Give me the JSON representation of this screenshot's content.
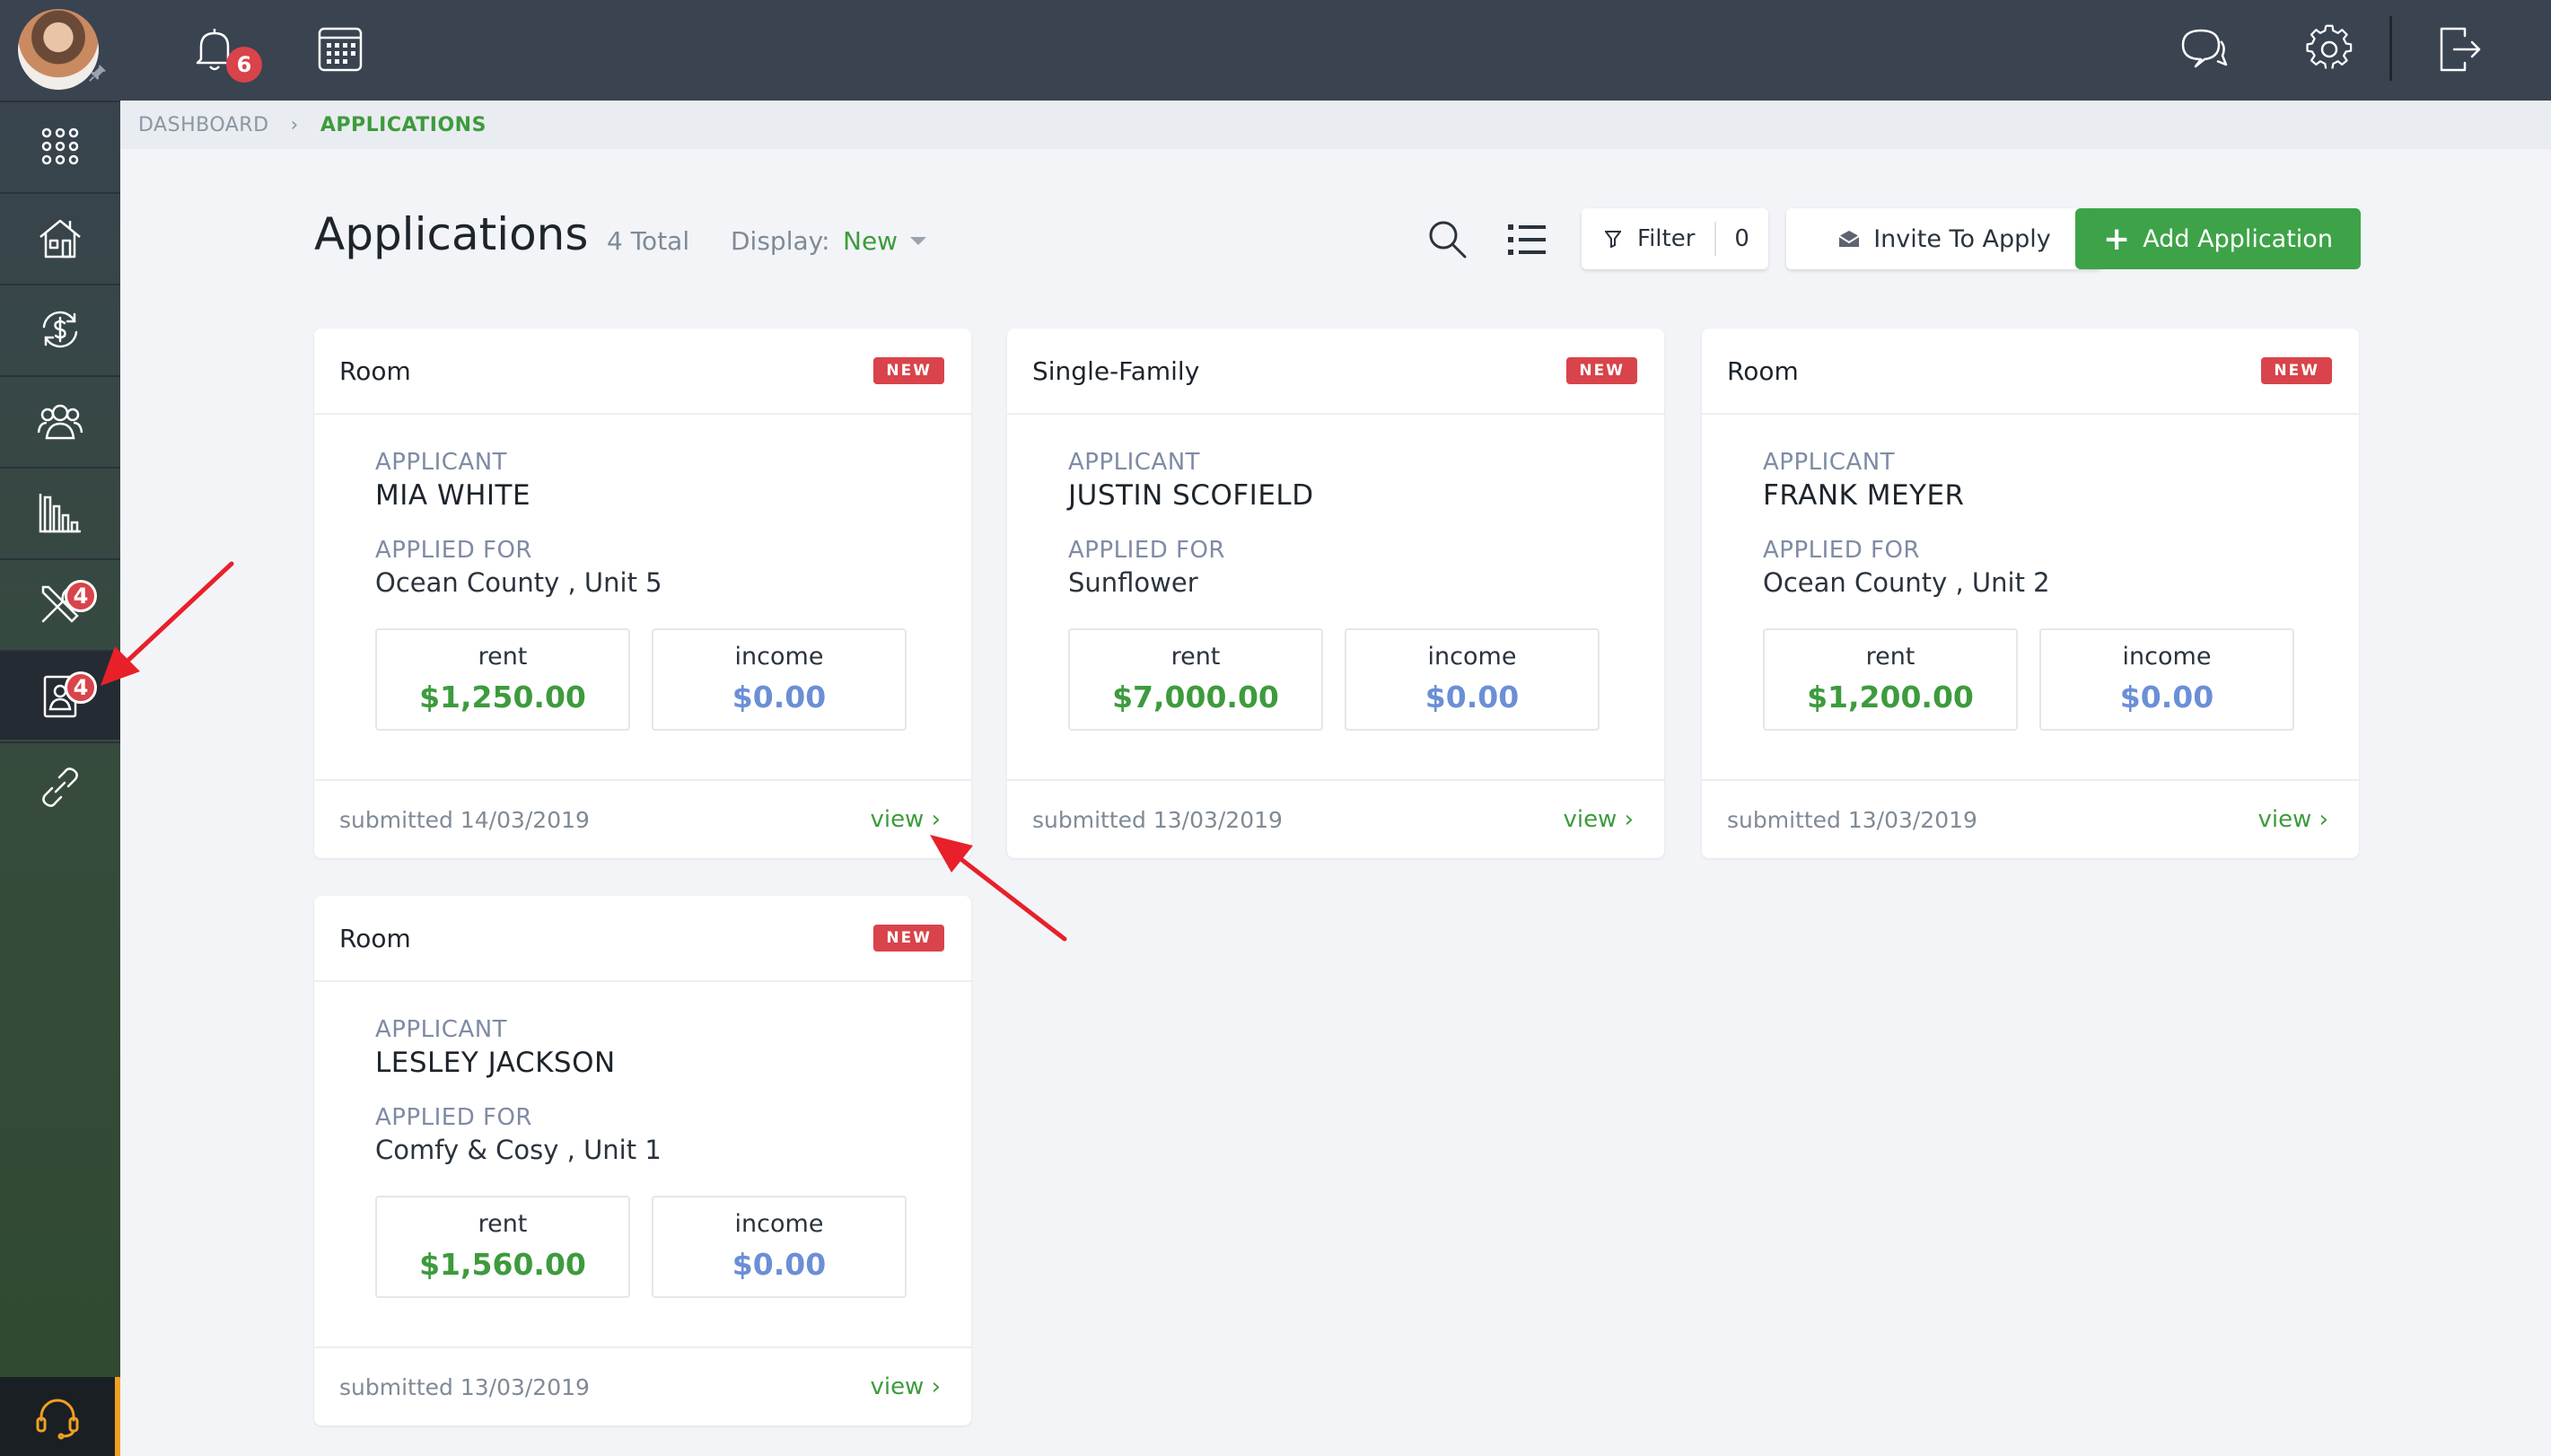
{
  "topbar": {
    "notification_count": "6"
  },
  "sidebar": {
    "items": [
      {
        "name": "apps",
        "icon": "grid-icon"
      },
      {
        "name": "properties",
        "icon": "house-icon"
      },
      {
        "name": "accounting",
        "icon": "dollar-cycle-icon"
      },
      {
        "name": "people",
        "icon": "users-icon"
      },
      {
        "name": "reports",
        "icon": "bar-chart-icon"
      },
      {
        "name": "maintenance",
        "icon": "tools-icon",
        "badge": "4"
      },
      {
        "name": "applications",
        "icon": "applicant-icon",
        "badge": "4",
        "active": true
      },
      {
        "name": "links",
        "icon": "link-icon"
      }
    ]
  },
  "breadcrumb": {
    "root": "DASHBOARD",
    "current": "APPLICATIONS"
  },
  "header": {
    "title": "Applications",
    "total": "4 Total",
    "display_label": "Display:",
    "display_value": "New",
    "filter_label": "Filter",
    "filter_count": "0",
    "invite_label": "Invite To Apply",
    "add_label": "Add Application"
  },
  "cards": [
    {
      "type": "Room",
      "badge": "NEW",
      "applicant_label": "APPLICANT",
      "applicant": "MIA WHITE",
      "applied_label": "APPLIED FOR",
      "applied_for": "Ocean County , Unit 5",
      "rent_label": "rent",
      "rent": "$1,250.00",
      "income_label": "income",
      "income": "$0.00",
      "submitted": "submitted 14/03/2019",
      "view": "view ›"
    },
    {
      "type": "Single-Family",
      "badge": "NEW",
      "applicant_label": "APPLICANT",
      "applicant": "JUSTIN SCOFIELD",
      "applied_label": "APPLIED FOR",
      "applied_for": "Sunflower",
      "rent_label": "rent",
      "rent": "$7,000.00",
      "income_label": "income",
      "income": "$0.00",
      "submitted": "submitted 13/03/2019",
      "view": "view ›"
    },
    {
      "type": "Room",
      "badge": "NEW",
      "applicant_label": "APPLICANT",
      "applicant": "FRANK MEYER",
      "applied_label": "APPLIED FOR",
      "applied_for": "Ocean County , Unit 2",
      "rent_label": "rent",
      "rent": "$1,200.00",
      "income_label": "income",
      "income": "$0.00",
      "submitted": "submitted 13/03/2019",
      "view": "view ›"
    },
    {
      "type": "Room",
      "badge": "NEW",
      "applicant_label": "APPLICANT",
      "applicant": "LESLEY JACKSON",
      "applied_label": "APPLIED FOR",
      "applied_for": "Comfy & Cosy , Unit 1",
      "rent_label": "rent",
      "rent": "$1,560.00",
      "income_label": "income",
      "income": "$0.00",
      "submitted": "submitted 13/03/2019",
      "view": "view ›"
    }
  ],
  "colors": {
    "accent_green": "#3ea348",
    "badge_red": "#d9434b",
    "annotation_arrow": "#e8202a"
  }
}
